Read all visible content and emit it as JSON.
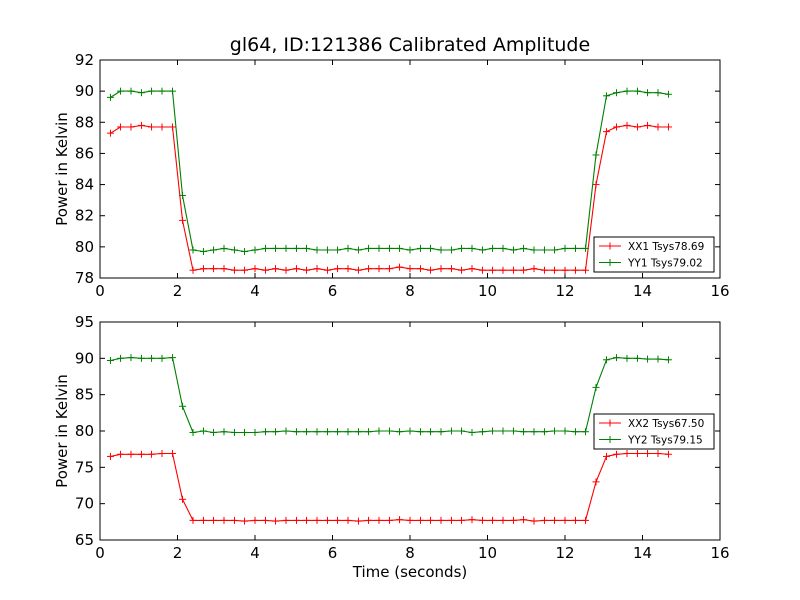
{
  "chart_data": [
    {
      "type": "line",
      "title": "gl64, ID:121386 Calibrated Amplitude",
      "xlabel": "",
      "ylabel": "Power in Kelvin",
      "xlim": [
        0,
        16
      ],
      "ylim": [
        78,
        92
      ],
      "xticks": [
        0,
        2,
        4,
        6,
        8,
        10,
        12,
        14,
        16
      ],
      "yticks": [
        78,
        80,
        82,
        84,
        86,
        88,
        90,
        92
      ],
      "grid": false,
      "legend_position": "lower-right",
      "x": [
        0.27,
        0.53,
        0.8,
        1.07,
        1.33,
        1.6,
        1.87,
        2.13,
        2.4,
        2.67,
        2.93,
        3.2,
        3.47,
        3.73,
        4.0,
        4.27,
        4.53,
        4.8,
        5.07,
        5.33,
        5.6,
        5.87,
        6.13,
        6.4,
        6.67,
        6.93,
        7.2,
        7.47,
        7.73,
        8.0,
        8.27,
        8.53,
        8.8,
        9.07,
        9.33,
        9.6,
        9.87,
        10.13,
        10.4,
        10.67,
        10.93,
        11.2,
        11.47,
        11.73,
        12.0,
        12.27,
        12.53,
        12.8,
        13.07,
        13.33,
        13.6,
        13.87,
        14.13,
        14.4,
        14.67
      ],
      "series": [
        {
          "name": "XX1 Tsys78.69",
          "color": "#ff0000",
          "values": [
            87.3,
            87.7,
            87.7,
            87.8,
            87.7,
            87.7,
            87.7,
            81.7,
            78.5,
            78.6,
            78.6,
            78.6,
            78.5,
            78.5,
            78.6,
            78.5,
            78.6,
            78.5,
            78.6,
            78.5,
            78.6,
            78.5,
            78.6,
            78.6,
            78.5,
            78.6,
            78.6,
            78.6,
            78.7,
            78.6,
            78.6,
            78.5,
            78.6,
            78.6,
            78.5,
            78.6,
            78.5,
            78.5,
            78.5,
            78.5,
            78.5,
            78.6,
            78.5,
            78.5,
            78.5,
            78.5,
            78.5,
            84.0,
            87.4,
            87.7,
            87.8,
            87.7,
            87.8,
            87.7,
            87.7
          ]
        },
        {
          "name": "YY1 Tsys79.02",
          "color": "#008000",
          "values": [
            89.6,
            90.0,
            90.0,
            89.9,
            90.0,
            90.0,
            90.0,
            83.3,
            79.8,
            79.7,
            79.8,
            79.9,
            79.8,
            79.7,
            79.8,
            79.9,
            79.9,
            79.9,
            79.9,
            79.9,
            79.8,
            79.8,
            79.8,
            79.9,
            79.8,
            79.9,
            79.9,
            79.9,
            79.9,
            79.8,
            79.9,
            79.9,
            79.8,
            79.8,
            79.9,
            79.9,
            79.8,
            79.9,
            79.9,
            79.8,
            79.9,
            79.8,
            79.8,
            79.8,
            79.9,
            79.9,
            79.9,
            85.9,
            89.7,
            89.9,
            90.0,
            90.0,
            89.9,
            89.9,
            89.8
          ]
        }
      ]
    },
    {
      "type": "line",
      "title": "",
      "xlabel": "Time (seconds)",
      "ylabel": "Power in Kelvin",
      "xlim": [
        0,
        16
      ],
      "ylim": [
        65,
        95
      ],
      "xticks": [
        0,
        2,
        4,
        6,
        8,
        10,
        12,
        14,
        16
      ],
      "yticks": [
        65,
        70,
        75,
        80,
        85,
        90,
        95
      ],
      "grid": false,
      "legend_position": "right",
      "x": [
        0.27,
        0.53,
        0.8,
        1.07,
        1.33,
        1.6,
        1.87,
        2.13,
        2.4,
        2.67,
        2.93,
        3.2,
        3.47,
        3.73,
        4.0,
        4.27,
        4.53,
        4.8,
        5.07,
        5.33,
        5.6,
        5.87,
        6.13,
        6.4,
        6.67,
        6.93,
        7.2,
        7.47,
        7.73,
        8.0,
        8.27,
        8.53,
        8.8,
        9.07,
        9.33,
        9.6,
        9.87,
        10.13,
        10.4,
        10.67,
        10.93,
        11.2,
        11.47,
        11.73,
        12.0,
        12.27,
        12.53,
        12.8,
        13.07,
        13.33,
        13.6,
        13.87,
        14.13,
        14.4,
        14.67
      ],
      "series": [
        {
          "name": "XX2 Tsys67.50",
          "color": "#ff0000",
          "values": [
            76.5,
            76.8,
            76.8,
            76.8,
            76.8,
            76.9,
            76.9,
            70.6,
            67.7,
            67.7,
            67.7,
            67.7,
            67.7,
            67.6,
            67.7,
            67.7,
            67.6,
            67.7,
            67.7,
            67.7,
            67.7,
            67.7,
            67.7,
            67.7,
            67.6,
            67.7,
            67.7,
            67.7,
            67.8,
            67.7,
            67.7,
            67.7,
            67.7,
            67.7,
            67.7,
            67.8,
            67.7,
            67.7,
            67.7,
            67.7,
            67.8,
            67.6,
            67.7,
            67.7,
            67.7,
            67.7,
            67.7,
            73.0,
            76.5,
            76.8,
            76.9,
            76.9,
            76.9,
            76.9,
            76.8
          ]
        },
        {
          "name": "YY2 Tsys79.15",
          "color": "#008000",
          "values": [
            89.7,
            90.0,
            90.1,
            90.0,
            90.0,
            90.0,
            90.1,
            83.4,
            79.8,
            80.0,
            79.8,
            79.9,
            79.8,
            79.8,
            79.8,
            79.9,
            79.9,
            80.0,
            79.9,
            79.9,
            79.9,
            79.9,
            79.9,
            79.9,
            79.9,
            79.9,
            80.0,
            80.0,
            79.9,
            80.0,
            79.9,
            79.9,
            79.9,
            80.0,
            80.0,
            79.8,
            79.9,
            80.0,
            80.0,
            80.0,
            79.9,
            79.9,
            79.9,
            80.0,
            80.0,
            79.9,
            79.9,
            86.0,
            89.8,
            90.1,
            90.0,
            90.0,
            89.9,
            89.9,
            89.8
          ]
        }
      ]
    }
  ]
}
